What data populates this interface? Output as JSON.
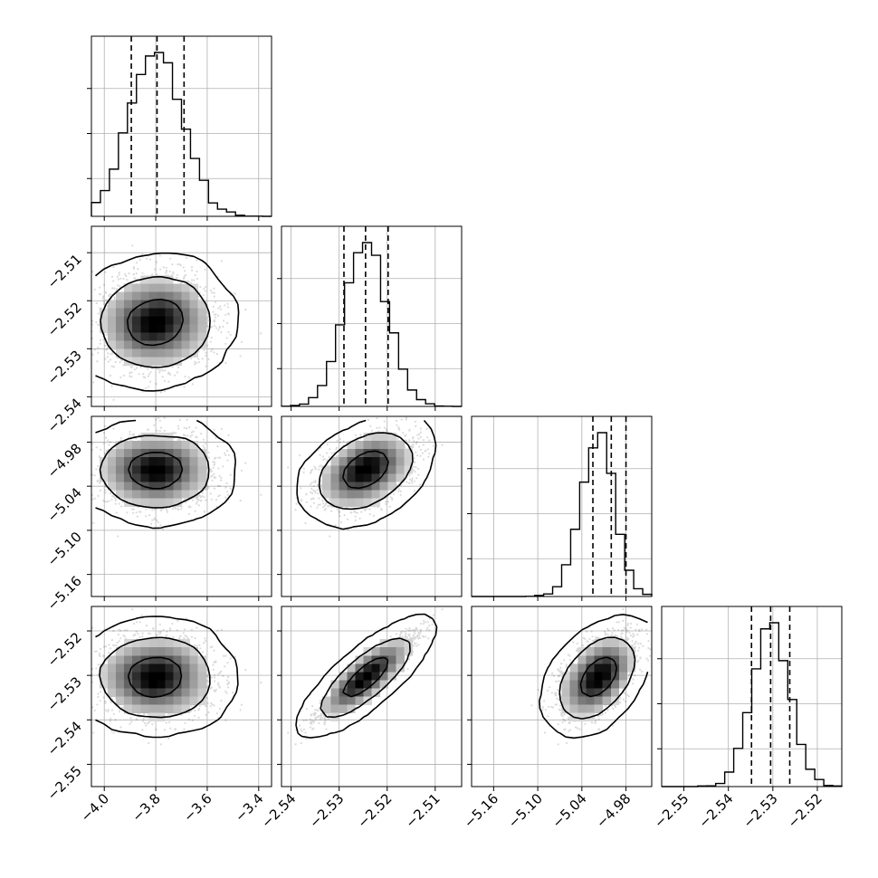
{
  "chart_data": {
    "type": "scatter",
    "subtype": "corner",
    "title": "",
    "params": [
      {
        "index": 0,
        "mean": -3.8,
        "sd": 0.105,
        "range": [
          -4.05,
          -3.35
        ],
        "ticks": [
          -4.0,
          -3.8,
          -3.6,
          -3.4
        ],
        "tick_labels": [
          "−4.0",
          "−3.8",
          "−3.6",
          "−3.4"
        ],
        "quantiles": [
          -3.895,
          -3.795,
          -3.69
        ]
      },
      {
        "index": 1,
        "mean": -2.5245,
        "sd": 0.0045,
        "range": [
          -2.542,
          -2.5045
        ],
        "ticks": [
          -2.54,
          -2.53,
          -2.52,
          -2.51
        ],
        "tick_labels": [
          "−2.54",
          "−2.53",
          "−2.52",
          "−2.51"
        ],
        "quantiles": [
          -2.529,
          -2.5245,
          -2.5198
        ]
      },
      {
        "index": 2,
        "mean": -5.005,
        "sd": 0.02,
        "range": [
          -5.19,
          -4.945
        ],
        "ticks": [
          -5.16,
          -5.1,
          -5.04,
          -4.98
        ],
        "tick_labels": [
          "−5.16",
          "−5.10",
          "−5.04",
          "−4.98"
        ],
        "quantiles": [
          -5.025,
          -5.0,
          -4.98
        ],
        "skew": -0.8
      },
      {
        "index": 3,
        "mean": -2.5305,
        "sd": 0.0042,
        "range": [
          -2.555,
          -2.5145
        ],
        "ticks": [
          -2.55,
          -2.54,
          -2.53,
          -2.52
        ],
        "tick_labels": [
          "−2.55",
          "−2.54",
          "−2.53",
          "−2.52"
        ],
        "quantiles": [
          -2.5348,
          -2.5305,
          -2.5262
        ]
      }
    ],
    "correlations": [
      {
        "pair": [
          1,
          0
        ],
        "r": 0.05
      },
      {
        "pair": [
          2,
          0
        ],
        "r": 0.0
      },
      {
        "pair": [
          2,
          1
        ],
        "r": 0.5
      },
      {
        "pair": [
          3,
          0
        ],
        "r": 0.0
      },
      {
        "pair": [
          3,
          1
        ],
        "r": 0.93
      },
      {
        "pair": [
          3,
          2
        ],
        "r": 0.65
      }
    ],
    "histogram_bins": 20,
    "contour_levels": [
      0.39,
      0.86,
      0.99
    ],
    "quantile_style": "dashed",
    "grid": true,
    "legend": "none"
  }
}
